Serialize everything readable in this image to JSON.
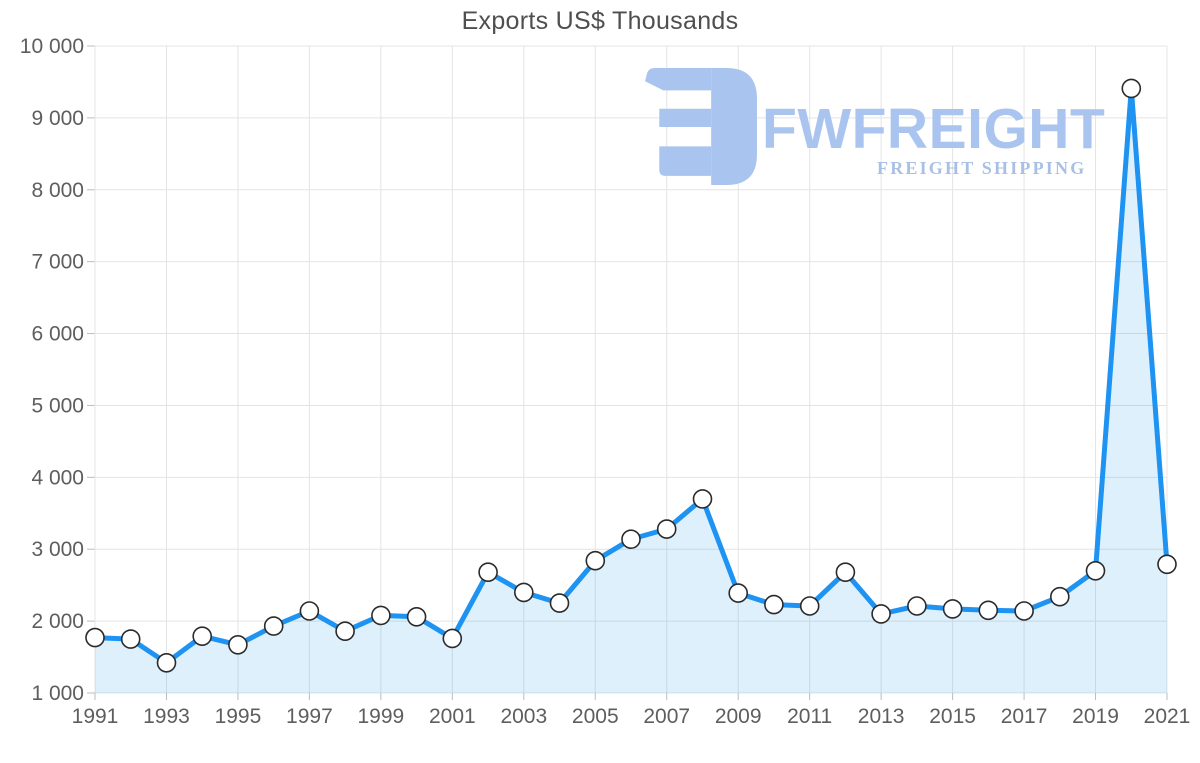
{
  "page": {
    "title": "Exports US$ Thousands"
  },
  "watermark": {
    "brand": "FWFREIGHT",
    "tagline": "FREIGHT SHIPPING",
    "logo_color": "#a9c4ee",
    "tagline_color": "#a9c0e6",
    "logo_icon": "fwfreight-mirrored-f-mark"
  },
  "chart_data": {
    "type": "area",
    "title": "Exports US$ Thousands",
    "x": [
      1991,
      1992,
      1993,
      1994,
      1995,
      1996,
      1997,
      1998,
      1999,
      2000,
      2001,
      2002,
      2003,
      2004,
      2005,
      2006,
      2007,
      2008,
      2009,
      2010,
      2011,
      2012,
      2013,
      2014,
      2015,
      2016,
      2017,
      2018,
      2019,
      2020,
      2021
    ],
    "values": [
      1770,
      1750,
      1420,
      1790,
      1670,
      1930,
      2140,
      1860,
      2080,
      2060,
      1760,
      2680,
      2400,
      2250,
      2840,
      3140,
      3280,
      3700,
      2390,
      2230,
      2210,
      2680,
      2100,
      2210,
      2170,
      2150,
      2140,
      2340,
      2700,
      9410,
      2790
    ],
    "x_tick_labels": [
      "1991",
      "1993",
      "1995",
      "1997",
      "1999",
      "2001",
      "2003",
      "2005",
      "2007",
      "2009",
      "2011",
      "2013",
      "2015",
      "2017",
      "2019",
      "2021"
    ],
    "y_ticks": [
      1000,
      2000,
      3000,
      4000,
      5000,
      6000,
      7000,
      8000,
      9000,
      10000
    ],
    "y_tick_labels": [
      "1 000",
      "2 000",
      "3 000",
      "4 000",
      "5 000",
      "6 000",
      "7 000",
      "8 000",
      "9 000",
      "10 000"
    ],
    "ylim": [
      1000,
      10000
    ],
    "xlim": [
      1991,
      2021
    ],
    "grid": true,
    "legend": false,
    "xlabel": "",
    "ylabel": "",
    "colors": {
      "line": "#1e93f2",
      "area_fill": "#1e93f2",
      "area_opacity": "0.14",
      "marker_fill": "#ffffff",
      "marker_stroke": "#2b2b2b",
      "grid": "#e4e4e4",
      "tick": "#bcbcbc",
      "axis_label": "#5e5e5e",
      "title": "#4f4f4f"
    }
  }
}
